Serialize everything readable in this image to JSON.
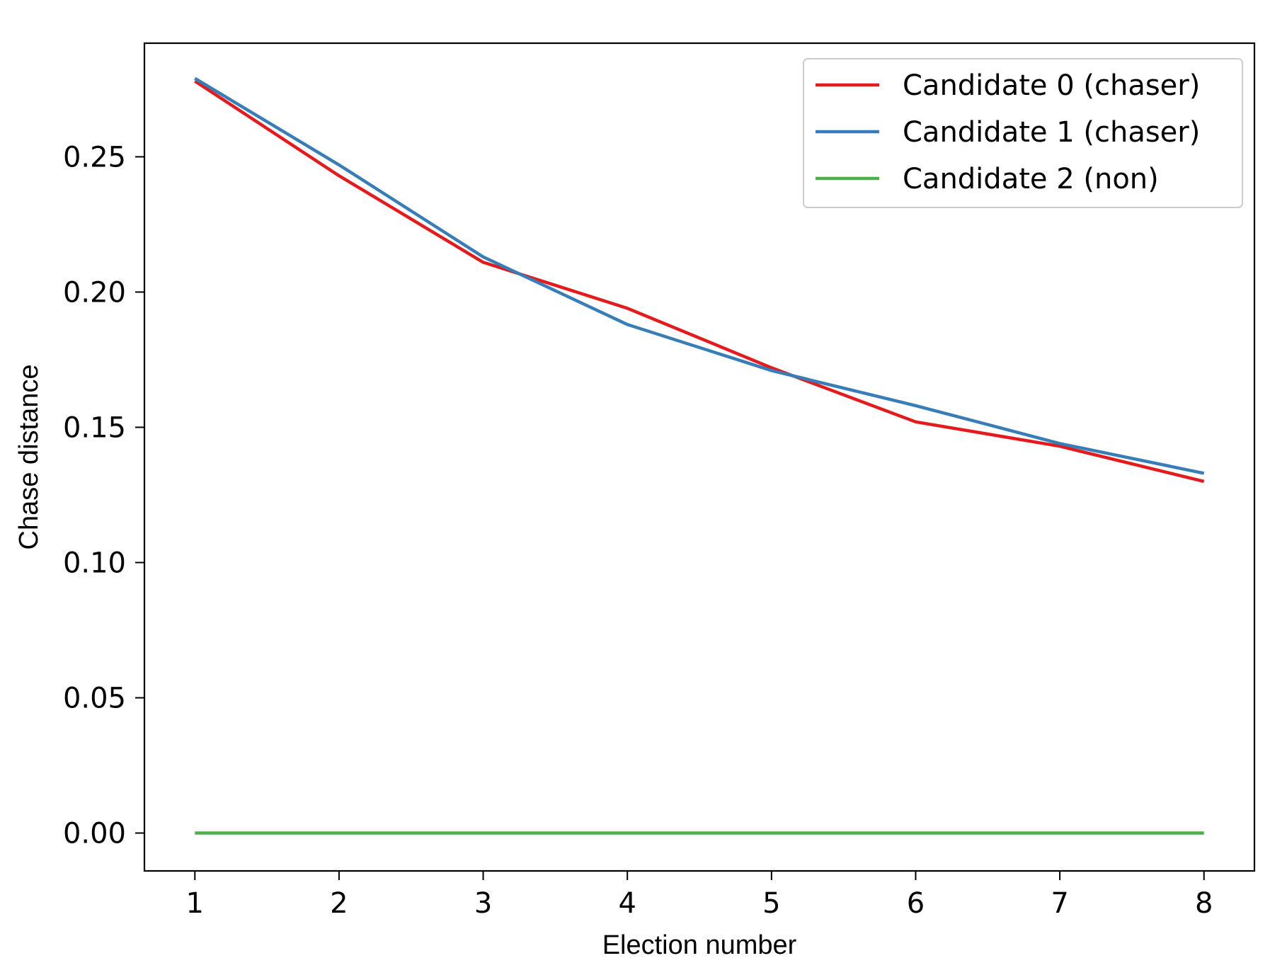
{
  "chart_data": {
    "type": "line",
    "title": "",
    "xlabel": "Election number",
    "ylabel": "Chase distance",
    "x": [
      1,
      2,
      3,
      4,
      5,
      6,
      7,
      8
    ],
    "xlim": [
      0.65,
      8.35
    ],
    "ylim": [
      -0.014,
      0.292
    ],
    "xticks": [
      "1",
      "2",
      "3",
      "4",
      "5",
      "6",
      "7",
      "8"
    ],
    "yticks": [
      "0.00",
      "0.05",
      "0.10",
      "0.15",
      "0.20",
      "0.25"
    ],
    "ytick_values": [
      0.0,
      0.05,
      0.1,
      0.15,
      0.2,
      0.25
    ],
    "grid": false,
    "legend_position": "top-right",
    "series": [
      {
        "name": "Candidate 0 (chaser)",
        "color": "#e41a1c",
        "values": [
          0.278,
          0.243,
          0.211,
          0.194,
          0.172,
          0.152,
          0.143,
          0.13
        ]
      },
      {
        "name": "Candidate 1 (chaser)",
        "color": "#377eb8",
        "values": [
          0.279,
          0.247,
          0.213,
          0.188,
          0.171,
          0.158,
          0.144,
          0.133
        ]
      },
      {
        "name": "Candidate 2 (non)",
        "color": "#4daf4a",
        "values": [
          0.0,
          0.0,
          0.0,
          0.0,
          0.0,
          0.0,
          0.0,
          0.0
        ]
      }
    ]
  }
}
